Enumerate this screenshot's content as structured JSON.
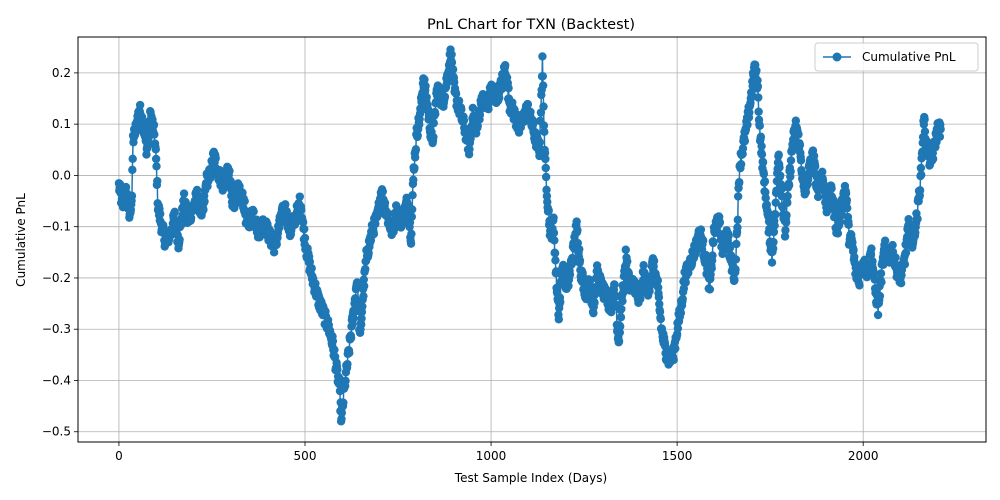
{
  "chart_data": {
    "type": "line",
    "title": "PnL Chart for TXN (Backtest)",
    "xlabel": "Test Sample Index (Days)",
    "ylabel": "Cumulative PnL",
    "xlim": [
      -110,
      2330
    ],
    "ylim": [
      -0.52,
      0.27
    ],
    "xticks": [
      0,
      500,
      1000,
      1500,
      2000
    ],
    "xtick_labels": [
      "0",
      "500",
      "1000",
      "1500",
      "2000"
    ],
    "yticks": [
      -0.5,
      -0.4,
      -0.3,
      -0.2,
      -0.1,
      0.0,
      0.1,
      0.2
    ],
    "ytick_labels": [
      "−0.5",
      "−0.4",
      "−0.3",
      "−0.2",
      "−0.1",
      "0.0",
      "0.1",
      "0.2"
    ],
    "grid": true,
    "legend_position": "top-right",
    "series_color": "#1f77b4",
    "series": [
      {
        "name": "Cumulative PnL",
        "marker": "circle",
        "keypoints": [
          [
            0,
            -0.02
          ],
          [
            10,
            -0.06
          ],
          [
            20,
            -0.03
          ],
          [
            28,
            -0.08
          ],
          [
            35,
            -0.04
          ],
          [
            38,
            0.07
          ],
          [
            45,
            0.09
          ],
          [
            55,
            0.13
          ],
          [
            65,
            0.1
          ],
          [
            75,
            0.05
          ],
          [
            85,
            0.12
          ],
          [
            95,
            0.08
          ],
          [
            100,
            0.03
          ],
          [
            105,
            -0.06
          ],
          [
            115,
            -0.1
          ],
          [
            125,
            -0.13
          ],
          [
            140,
            -0.11
          ],
          [
            150,
            -0.08
          ],
          [
            160,
            -0.13
          ],
          [
            175,
            -0.05
          ],
          [
            185,
            -0.09
          ],
          [
            200,
            -0.06
          ],
          [
            210,
            -0.04
          ],
          [
            225,
            -0.08
          ],
          [
            235,
            -0.01
          ],
          [
            245,
            0.0
          ],
          [
            255,
            0.04
          ],
          [
            265,
            0.01
          ],
          [
            280,
            -0.02
          ],
          [
            295,
            0.01
          ],
          [
            305,
            -0.06
          ],
          [
            320,
            -0.03
          ],
          [
            335,
            -0.05
          ],
          [
            345,
            -0.1
          ],
          [
            360,
            -0.07
          ],
          [
            375,
            -0.11
          ],
          [
            390,
            -0.09
          ],
          [
            405,
            -0.12
          ],
          [
            420,
            -0.14
          ],
          [
            430,
            -0.1
          ],
          [
            445,
            -0.06
          ],
          [
            460,
            -0.11
          ],
          [
            475,
            -0.08
          ],
          [
            488,
            -0.05
          ],
          [
            495,
            -0.1
          ],
          [
            505,
            -0.15
          ],
          [
            520,
            -0.2
          ],
          [
            535,
            -0.24
          ],
          [
            550,
            -0.27
          ],
          [
            565,
            -0.3
          ],
          [
            575,
            -0.33
          ],
          [
            585,
            -0.38
          ],
          [
            592,
            -0.41
          ],
          [
            598,
            -0.48
          ],
          [
            605,
            -0.42
          ],
          [
            615,
            -0.36
          ],
          [
            625,
            -0.3
          ],
          [
            632,
            -0.26
          ],
          [
            640,
            -0.2
          ],
          [
            648,
            -0.32
          ],
          [
            655,
            -0.24
          ],
          [
            665,
            -0.16
          ],
          [
            680,
            -0.11
          ],
          [
            695,
            -0.08
          ],
          [
            705,
            -0.03
          ],
          [
            715,
            -0.06
          ],
          [
            725,
            -0.09
          ],
          [
            735,
            -0.11
          ],
          [
            745,
            -0.07
          ],
          [
            760,
            -0.09
          ],
          [
            775,
            -0.05
          ],
          [
            785,
            -0.12
          ],
          [
            792,
            0.01
          ],
          [
            800,
            0.08
          ],
          [
            810,
            0.12
          ],
          [
            818,
            0.19
          ],
          [
            830,
            0.13
          ],
          [
            842,
            0.06
          ],
          [
            855,
            0.17
          ],
          [
            870,
            0.14
          ],
          [
            882,
            0.19
          ],
          [
            892,
            0.24
          ],
          [
            902,
            0.16
          ],
          [
            915,
            0.13
          ],
          [
            930,
            0.09
          ],
          [
            942,
            0.05
          ],
          [
            950,
            0.12
          ],
          [
            962,
            0.09
          ],
          [
            975,
            0.15
          ],
          [
            990,
            0.13
          ],
          [
            1000,
            0.17
          ],
          [
            1012,
            0.15
          ],
          [
            1025,
            0.17
          ],
          [
            1038,
            0.21
          ],
          [
            1050,
            0.14
          ],
          [
            1062,
            0.12
          ],
          [
            1075,
            0.09
          ],
          [
            1085,
            0.11
          ],
          [
            1098,
            0.13
          ],
          [
            1110,
            0.1
          ],
          [
            1120,
            0.07
          ],
          [
            1130,
            0.05
          ],
          [
            1138,
            0.22
          ],
          [
            1145,
            0.03
          ],
          [
            1152,
            -0.05
          ],
          [
            1160,
            -0.12
          ],
          [
            1168,
            -0.09
          ],
          [
            1175,
            -0.2
          ],
          [
            1182,
            -0.27
          ],
          [
            1192,
            -0.18
          ],
          [
            1205,
            -0.22
          ],
          [
            1218,
            -0.16
          ],
          [
            1230,
            -0.1
          ],
          [
            1242,
            -0.19
          ],
          [
            1255,
            -0.23
          ],
          [
            1265,
            -0.21
          ],
          [
            1275,
            -0.26
          ],
          [
            1285,
            -0.19
          ],
          [
            1298,
            -0.22
          ],
          [
            1310,
            -0.24
          ],
          [
            1322,
            -0.26
          ],
          [
            1332,
            -0.21
          ],
          [
            1342,
            -0.33
          ],
          [
            1352,
            -0.24
          ],
          [
            1362,
            -0.16
          ],
          [
            1375,
            -0.22
          ],
          [
            1385,
            -0.21
          ],
          [
            1398,
            -0.25
          ],
          [
            1410,
            -0.19
          ],
          [
            1422,
            -0.23
          ],
          [
            1435,
            -0.17
          ],
          [
            1448,
            -0.22
          ],
          [
            1458,
            -0.3
          ],
          [
            1468,
            -0.34
          ],
          [
            1478,
            -0.36
          ],
          [
            1490,
            -0.35
          ],
          [
            1500,
            -0.3
          ],
          [
            1510,
            -0.26
          ],
          [
            1520,
            -0.2
          ],
          [
            1535,
            -0.17
          ],
          [
            1550,
            -0.14
          ],
          [
            1562,
            -0.11
          ],
          [
            1575,
            -0.16
          ],
          [
            1588,
            -0.22
          ],
          [
            1598,
            -0.12
          ],
          [
            1610,
            -0.08
          ],
          [
            1622,
            -0.14
          ],
          [
            1635,
            -0.11
          ],
          [
            1645,
            -0.17
          ],
          [
            1655,
            -0.2
          ],
          [
            1662,
            -0.09
          ],
          [
            1668,
            0.02
          ],
          [
            1678,
            0.06
          ],
          [
            1688,
            0.1
          ],
          [
            1698,
            0.15
          ],
          [
            1708,
            0.21
          ],
          [
            1716,
            0.18
          ],
          [
            1722,
            0.09
          ],
          [
            1730,
            0.02
          ],
          [
            1742,
            -0.07
          ],
          [
            1755,
            -0.16
          ],
          [
            1765,
            -0.06
          ],
          [
            1772,
            0.05
          ],
          [
            1780,
            -0.03
          ],
          [
            1790,
            -0.11
          ],
          [
            1800,
            -0.02
          ],
          [
            1810,
            0.06
          ],
          [
            1820,
            0.1
          ],
          [
            1830,
            0.05
          ],
          [
            1842,
            -0.04
          ],
          [
            1855,
            0.01
          ],
          [
            1865,
            0.04
          ],
          [
            1878,
            -0.03
          ],
          [
            1890,
            0.0
          ],
          [
            1902,
            -0.06
          ],
          [
            1915,
            -0.03
          ],
          [
            1930,
            -0.11
          ],
          [
            1940,
            -0.07
          ],
          [
            1952,
            -0.02
          ],
          [
            1962,
            -0.12
          ],
          [
            1970,
            -0.13
          ],
          [
            1980,
            -0.19
          ],
          [
            1990,
            -0.2
          ],
          [
            2000,
            -0.17
          ],
          [
            2012,
            -0.19
          ],
          [
            2022,
            -0.15
          ],
          [
            2032,
            -0.22
          ],
          [
            2040,
            -0.26
          ],
          [
            2048,
            -0.2
          ],
          [
            2058,
            -0.14
          ],
          [
            2068,
            -0.16
          ],
          [
            2080,
            -0.15
          ],
          [
            2092,
            -0.19
          ],
          [
            2102,
            -0.2
          ],
          [
            2112,
            -0.16
          ],
          [
            2122,
            -0.1
          ],
          [
            2132,
            -0.13
          ],
          [
            2145,
            -0.08
          ],
          [
            2155,
            0.0
          ],
          [
            2163,
            0.11
          ],
          [
            2172,
            0.05
          ],
          [
            2182,
            0.02
          ],
          [
            2192,
            0.06
          ],
          [
            2200,
            0.09
          ],
          [
            2208,
            0.09
          ]
        ]
      }
    ]
  }
}
